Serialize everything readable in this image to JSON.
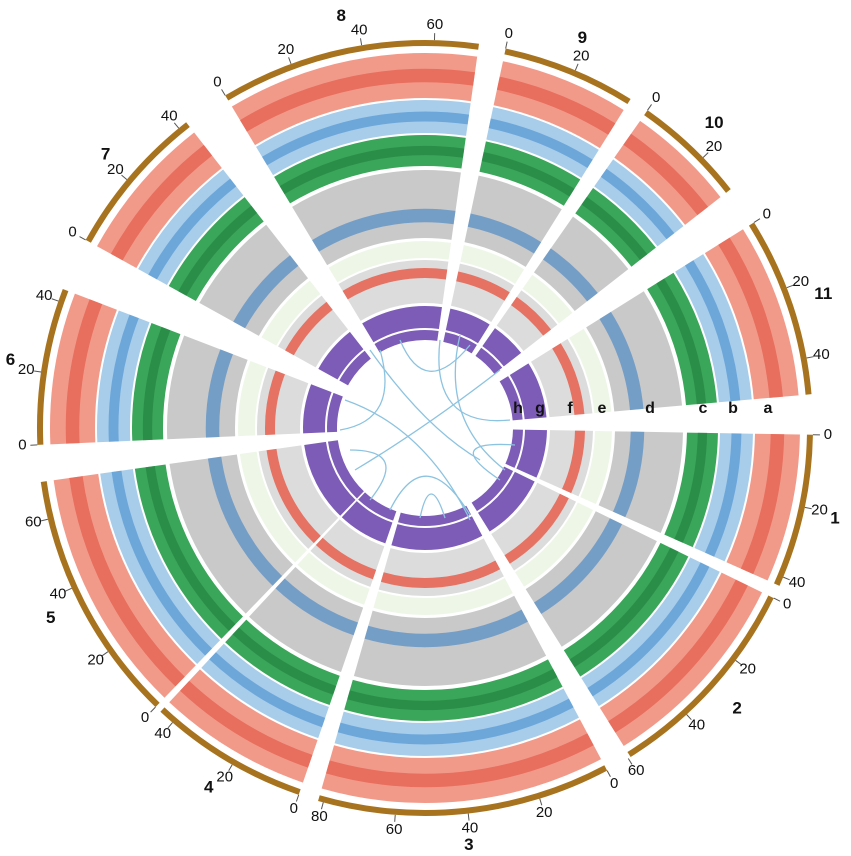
{
  "chromosomes": [
    {
      "label": "1",
      "ticks": [
        0,
        20,
        40
      ]
    },
    {
      "label": "2",
      "ticks": [
        0,
        20,
        40,
        60
      ]
    },
    {
      "label": "3",
      "ticks": [
        0,
        20,
        40,
        60,
        80
      ]
    },
    {
      "label": "4",
      "ticks": [
        0,
        20,
        40
      ]
    },
    {
      "label": "5",
      "ticks": [
        0,
        20,
        40,
        60
      ]
    },
    {
      "label": "6",
      "ticks": [
        0,
        20,
        40
      ]
    },
    {
      "label": "7",
      "ticks": [
        0,
        20,
        40
      ]
    },
    {
      "label": "8",
      "ticks": [
        0,
        20,
        40,
        60
      ]
    },
    {
      "label": "9",
      "ticks": [
        0,
        20
      ]
    },
    {
      "label": "10",
      "ticks": [
        0,
        20
      ]
    },
    {
      "label": "11",
      "ticks": [
        0,
        20,
        40
      ]
    }
  ],
  "tracks": [
    "a",
    "b",
    "c",
    "d",
    "e",
    "f",
    "g",
    "h"
  ]
}
